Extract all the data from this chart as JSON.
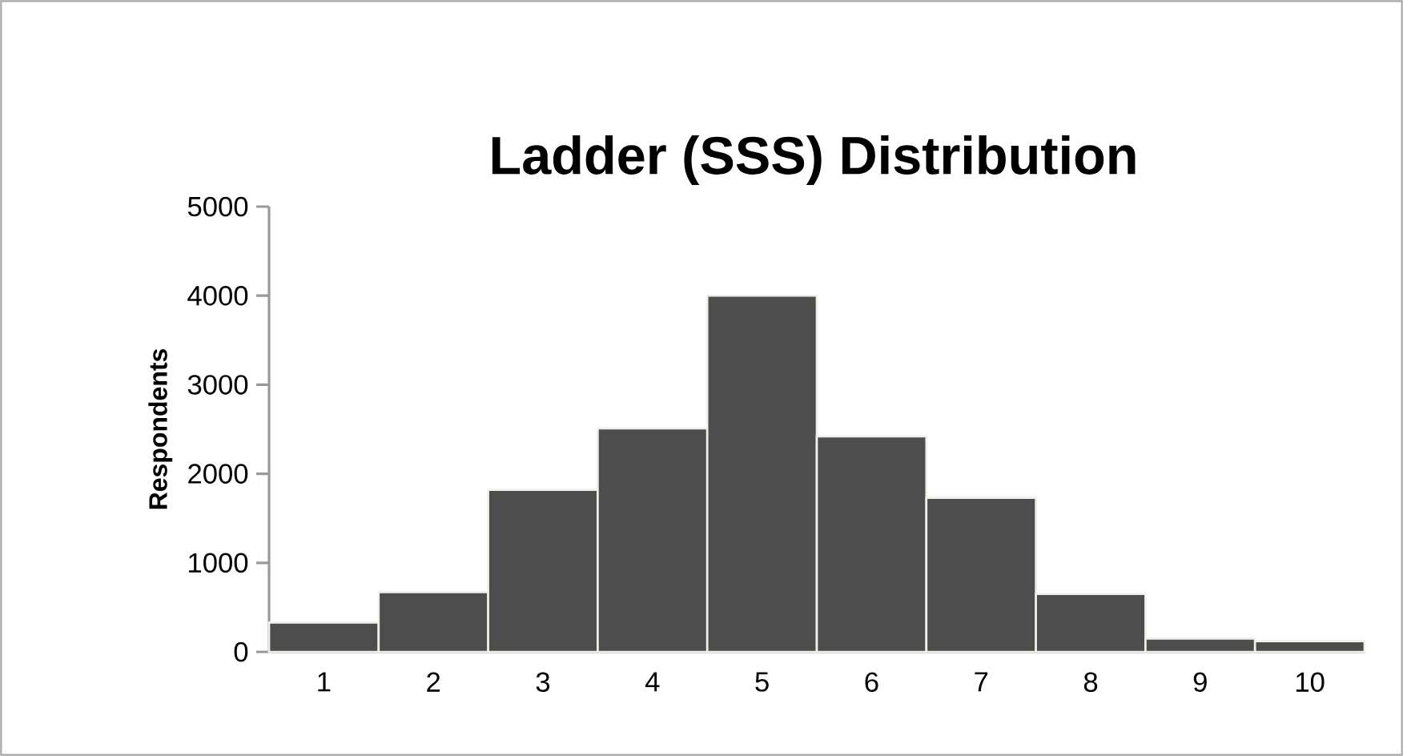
{
  "chart_data": {
    "type": "bar",
    "title": "Ladder (SSS) Distribution",
    "ylabel": "Respondents",
    "categories": [
      "1",
      "2",
      "3",
      "4",
      "5",
      "6",
      "7",
      "8",
      "9",
      "10"
    ],
    "values": [
      330,
      670,
      1820,
      2510,
      4000,
      2420,
      1730,
      650,
      150,
      120
    ],
    "color": "#4d4d4d",
    "ylim": [
      0,
      5000
    ],
    "yticks": [
      0,
      1000,
      2000,
      3000,
      4000,
      5000
    ],
    "grid": false
  }
}
